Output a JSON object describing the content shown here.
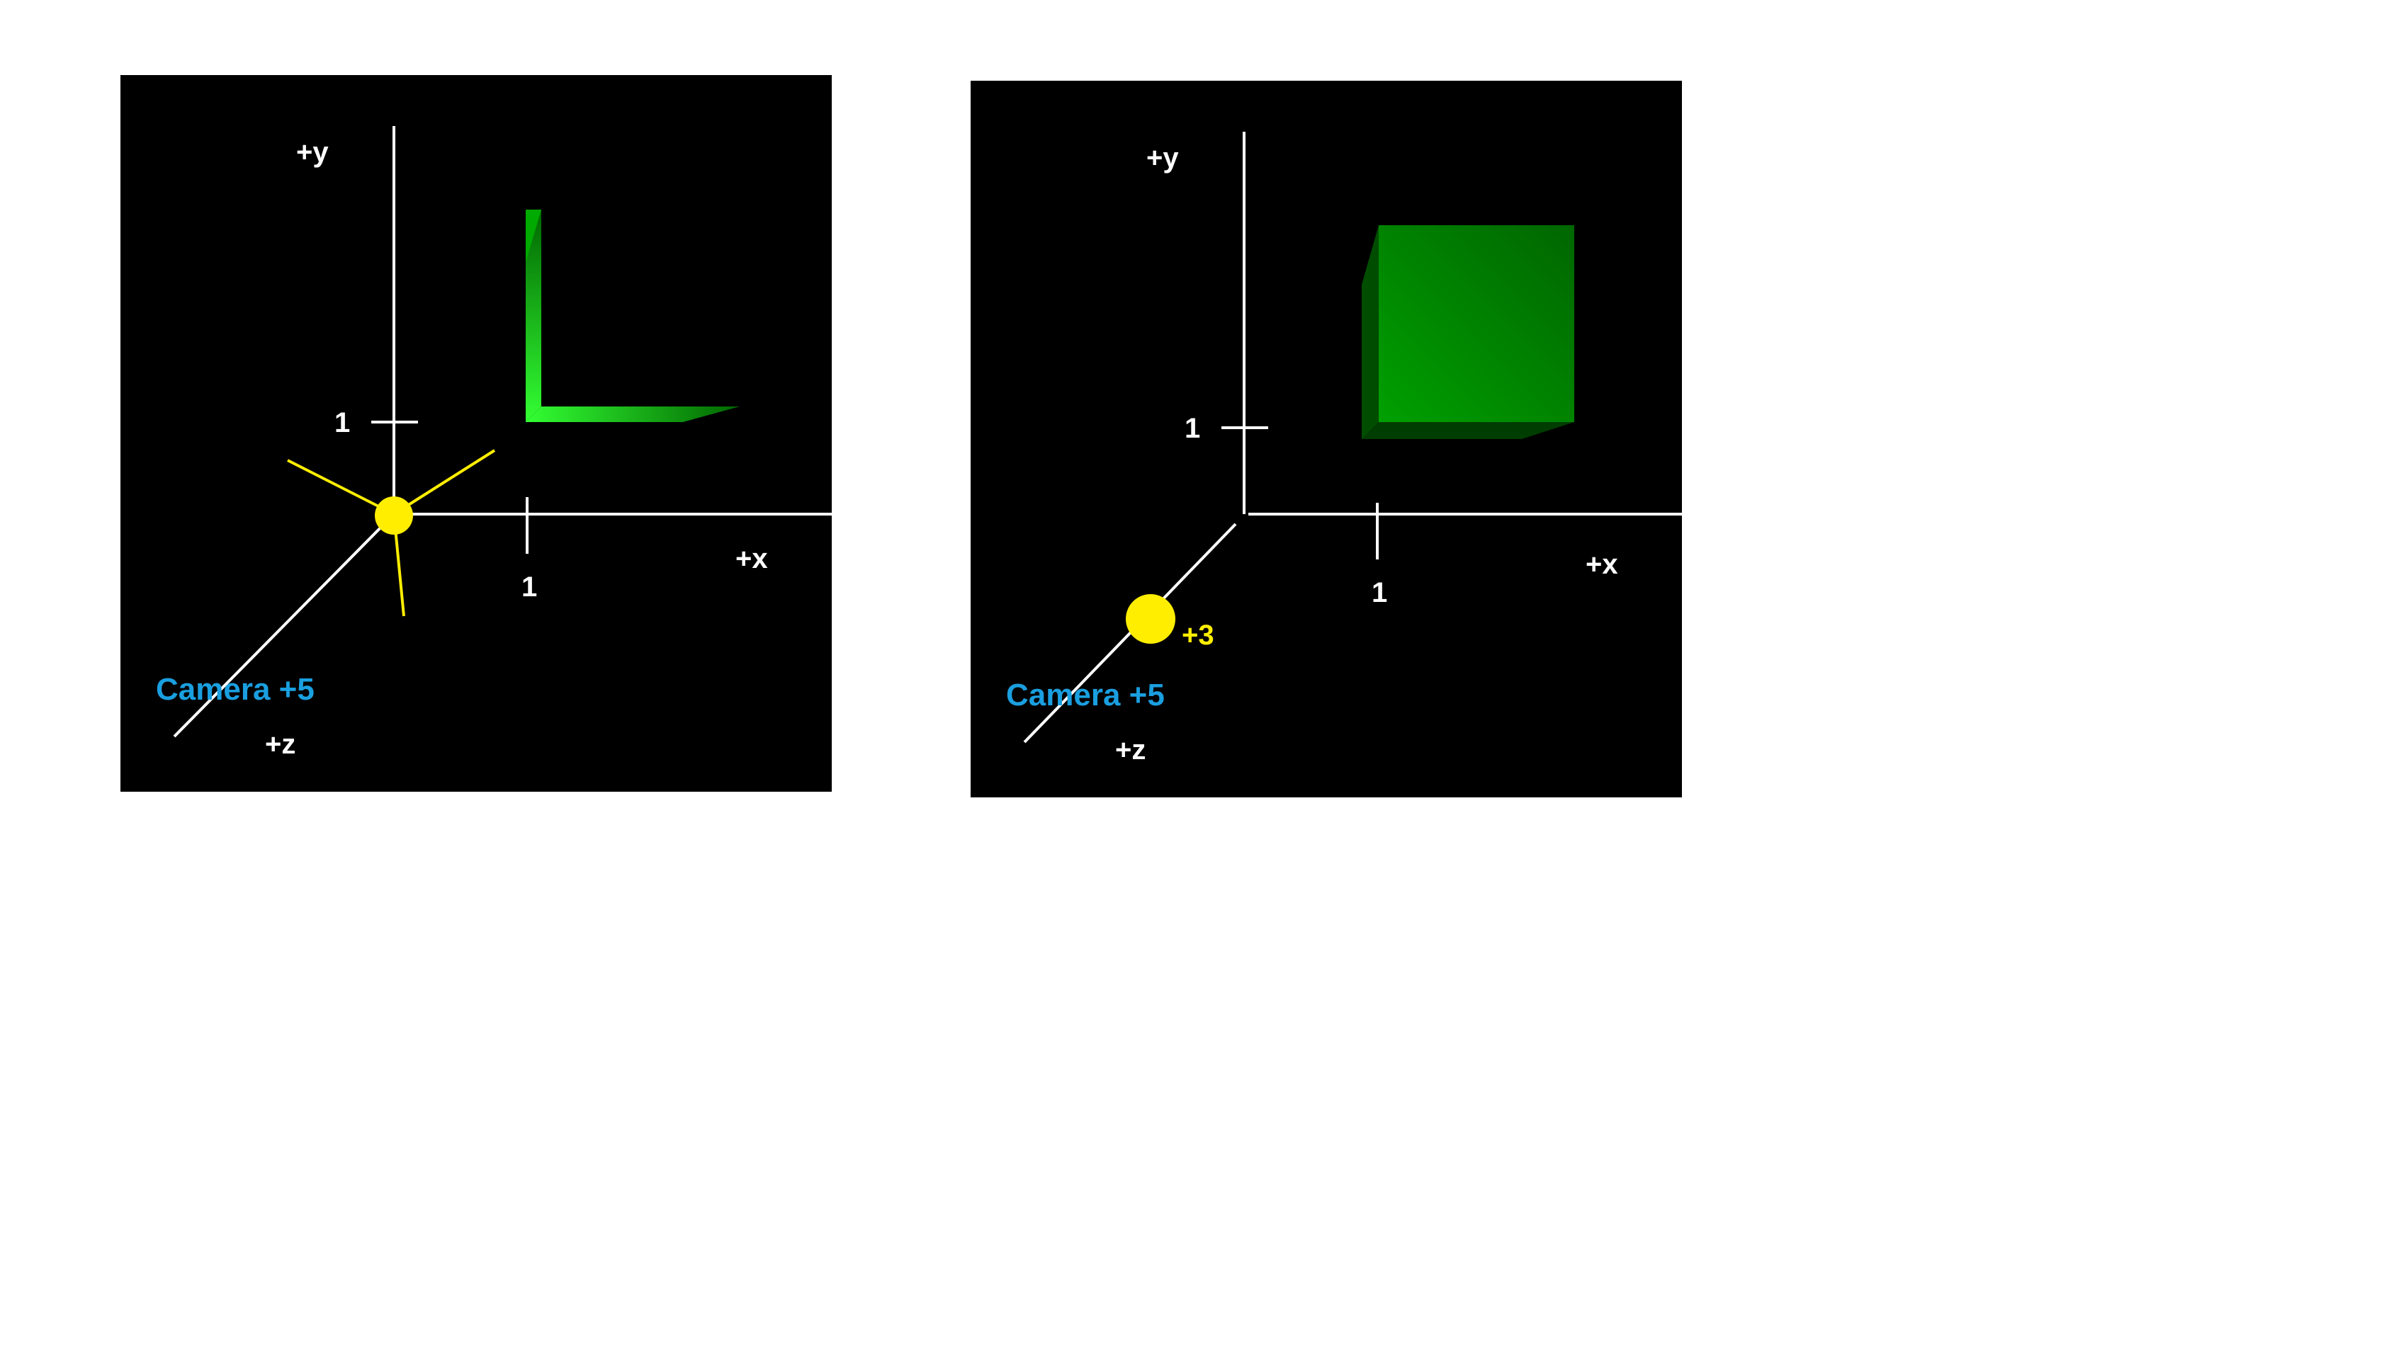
{
  "colors": {
    "background": "#000000",
    "axis": "#ffffff",
    "camera_label": "#1a9fe0",
    "light": "#ffee00",
    "object_green": "#00cc00"
  },
  "left_panel": {
    "axis_y_label": "+y",
    "axis_x_label": "+x",
    "axis_z_label": "+z",
    "tick_y_label": "1",
    "tick_x_label": "1",
    "camera_label": "Camera +5"
  },
  "right_panel": {
    "axis_y_label": "+y",
    "axis_x_label": "+x",
    "axis_z_label": "+z",
    "tick_y_label": "1",
    "tick_x_label": "1",
    "light_label": "+3",
    "camera_label": "Camera +5"
  }
}
